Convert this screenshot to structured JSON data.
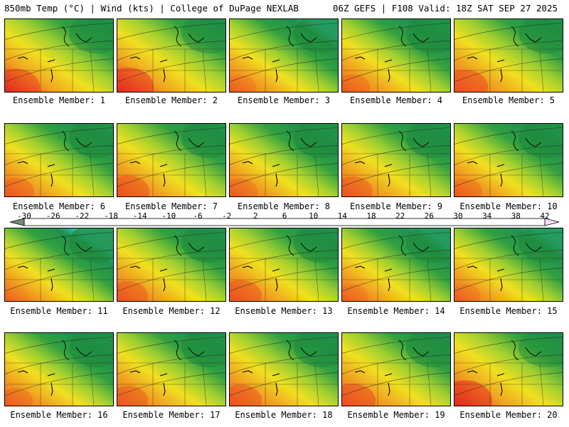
{
  "header": {
    "left": "850mb Temp (°C) | Wind (kts) | College of DuPage NEXLAB",
    "right": "06Z GEFS | F108 Valid: 18Z SAT SEP 27 2025"
  },
  "members": [
    {
      "label": "Ensemble Member: 1",
      "warmth": 0.85
    },
    {
      "label": "Ensemble Member: 2",
      "warmth": 0.9
    },
    {
      "label": "Ensemble Member: 3",
      "warmth": 0.55
    },
    {
      "label": "Ensemble Member: 4",
      "warmth": 0.6
    },
    {
      "label": "Ensemble Member: 5",
      "warmth": 0.8
    },
    {
      "label": "Ensemble Member: 6",
      "warmth": 0.65
    },
    {
      "label": "Ensemble Member: 7",
      "warmth": 0.75
    },
    {
      "label": "Ensemble Member: 8",
      "warmth": 0.6
    },
    {
      "label": "Ensemble Member: 9",
      "warmth": 0.7
    },
    {
      "label": "Ensemble Member: 10",
      "warmth": 0.6
    },
    {
      "label": "Ensemble Member: 11",
      "warmth": 0.45
    },
    {
      "label": "Ensemble Member: 12",
      "warmth": 0.7
    },
    {
      "label": "Ensemble Member: 13",
      "warmth": 0.75
    },
    {
      "label": "Ensemble Member: 14",
      "warmth": 0.55
    },
    {
      "label": "Ensemble Member: 15",
      "warmth": 0.55
    },
    {
      "label": "Ensemble Member: 16",
      "warmth": 0.6
    },
    {
      "label": "Ensemble Member: 17",
      "warmth": 0.7
    },
    {
      "label": "Ensemble Member: 18",
      "warmth": 0.75
    },
    {
      "label": "Ensemble Member: 19",
      "warmth": 0.8
    },
    {
      "label": "Ensemble Member: 20",
      "warmth": 0.95
    }
  ],
  "colorbar": {
    "ticks": [
      "-30",
      "-26",
      "-22",
      "-18",
      "-14",
      "-10",
      "-6",
      "-2",
      "2",
      "6",
      "10",
      "14",
      "18",
      "22",
      "26",
      "30",
      "34",
      "38",
      "42"
    ],
    "colors": [
      "#8a9a8a",
      "#7a7a7a",
      "#999999",
      "#8c8c8c",
      "#b0b0b0",
      "#9fb0c8",
      "#c8a0e0",
      "#e070e0",
      "#c040e0",
      "#8020c0",
      "#2020a0",
      "#2040e0",
      "#2090f0",
      "#20c0e0",
      "#20d0a0",
      "#30c070",
      "#20a040",
      "#409020",
      "#80c020",
      "#c0e020",
      "#f0f020",
      "#f0d020",
      "#f0a020",
      "#f07020",
      "#f04020",
      "#e02020",
      "#c01020",
      "#a01020",
      "#900040",
      "#c01080",
      "#e040b0",
      "#f070d0",
      "#f0a0e0",
      "#f8c8f0",
      "#ffe0ff"
    ]
  }
}
